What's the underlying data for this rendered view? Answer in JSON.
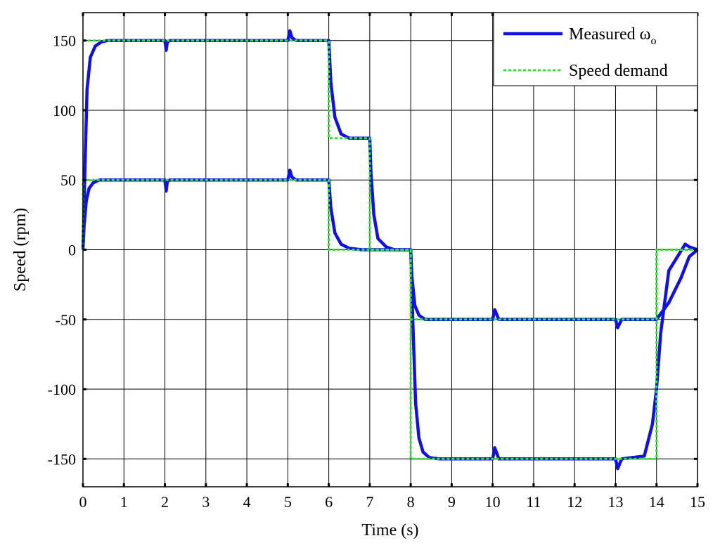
{
  "chart_data": {
    "type": "line",
    "title": "",
    "xlabel": "Time (s)",
    "ylabel": "Speed (rpm)",
    "xlim": [
      0,
      15
    ],
    "ylim": [
      -170,
      170
    ],
    "xticks": [
      0,
      1,
      2,
      3,
      4,
      5,
      6,
      7,
      8,
      9,
      10,
      11,
      12,
      13,
      14,
      15
    ],
    "yticks": [
      -150,
      -100,
      -50,
      0,
      50,
      100,
      150
    ],
    "grid": true,
    "legend_position": "top-right",
    "colors": {
      "measured": "#1010e8",
      "demand": "#22ee22"
    },
    "legend": [
      {
        "key": "measured",
        "base": "Measured ω",
        "sub": "o"
      },
      {
        "key": "demand",
        "base": "Speed demand",
        "sub": ""
      }
    ],
    "series": [
      {
        "style": "measured",
        "x": [
          0,
          0.03,
          0.08,
          0.15,
          0.25,
          0.4,
          0.6,
          2.0,
          2.03,
          2.06,
          2.12,
          5.0,
          5.05,
          5.1,
          5.2,
          6.0,
          6.05,
          6.15,
          6.3,
          6.5,
          6.8,
          7.0,
          8.0,
          8.03,
          8.1,
          8.2,
          8.35,
          8.6,
          10.0,
          10.05,
          10.15,
          13.0,
          13.05,
          13.15,
          14.0,
          14.3,
          14.6,
          14.8,
          15.0
        ],
        "y": [
          0,
          18,
          35,
          44,
          48,
          50,
          50,
          50,
          42,
          49,
          50,
          50,
          57,
          52,
          50,
          50,
          30,
          12,
          4,
          1,
          0,
          0,
          0,
          -20,
          -40,
          -47,
          -50,
          -50,
          -50,
          -43,
          -50,
          -50,
          -56,
          -50,
          -50,
          -38,
          -20,
          -5,
          0
        ]
      },
      {
        "style": "measured",
        "x": [
          0,
          0.05,
          0.1,
          0.18,
          0.3,
          0.45,
          0.6,
          2.0,
          2.03,
          2.06,
          2.12,
          5.0,
          5.05,
          5.1,
          5.2,
          6.0,
          6.05,
          6.15,
          6.3,
          6.5,
          7.0,
          7.03,
          7.1,
          7.2,
          7.4,
          7.6,
          8.0,
          8.05,
          8.12,
          8.2,
          8.3,
          8.45,
          8.7,
          10.0,
          10.05,
          10.15,
          13.0,
          13.05,
          13.15,
          13.7,
          13.9,
          14.0,
          14.1,
          14.3,
          14.7,
          14.8,
          15.0
        ],
        "y": [
          0,
          60,
          115,
          138,
          146,
          149,
          150,
          150,
          143,
          149,
          150,
          150,
          157,
          152,
          150,
          150,
          120,
          95,
          83,
          80,
          80,
          55,
          25,
          8,
          2,
          0,
          0,
          -50,
          -110,
          -135,
          -145,
          -149,
          -150,
          -150,
          -142,
          -150,
          -150,
          -157,
          -150,
          -148,
          -125,
          -100,
          -60,
          -15,
          4,
          2,
          0
        ]
      },
      {
        "style": "demand",
        "x": [
          0,
          0,
          6,
          6,
          8,
          8,
          14,
          14,
          15
        ],
        "y": [
          0,
          50,
          50,
          0,
          0,
          -50,
          -50,
          0,
          0
        ]
      },
      {
        "style": "demand",
        "x": [
          0,
          6,
          6,
          7,
          7,
          8,
          8,
          14,
          14,
          15
        ],
        "y": [
          150,
          150,
          80,
          80,
          0,
          0,
          -150,
          -150,
          0,
          0
        ]
      }
    ]
  }
}
